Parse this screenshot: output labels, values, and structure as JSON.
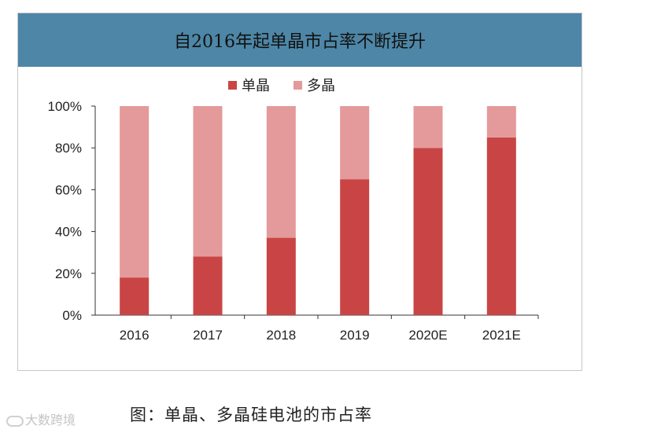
{
  "chart_data": {
    "type": "bar",
    "stacked": true,
    "title": "自2016年起单晶市占率不断提升",
    "categories": [
      "2016",
      "2017",
      "2018",
      "2019",
      "2020E",
      "2021E"
    ],
    "series": [
      {
        "name": "单晶",
        "values": [
          18,
          28,
          37,
          65,
          80,
          85
        ],
        "color": "#c94545"
      },
      {
        "name": "多晶",
        "values": [
          82,
          72,
          63,
          35,
          20,
          15
        ],
        "color": "#e49a9a"
      }
    ],
    "ylim": [
      0,
      100
    ],
    "yticks": [
      "0%",
      "20%",
      "40%",
      "60%",
      "80%",
      "100%"
    ],
    "grid": false,
    "legend": "top-center"
  },
  "caption": "图：单晶、多晶硅电池的市占率",
  "watermark": "大数跨境",
  "colors": {
    "title_bar": "#4d86a6"
  }
}
